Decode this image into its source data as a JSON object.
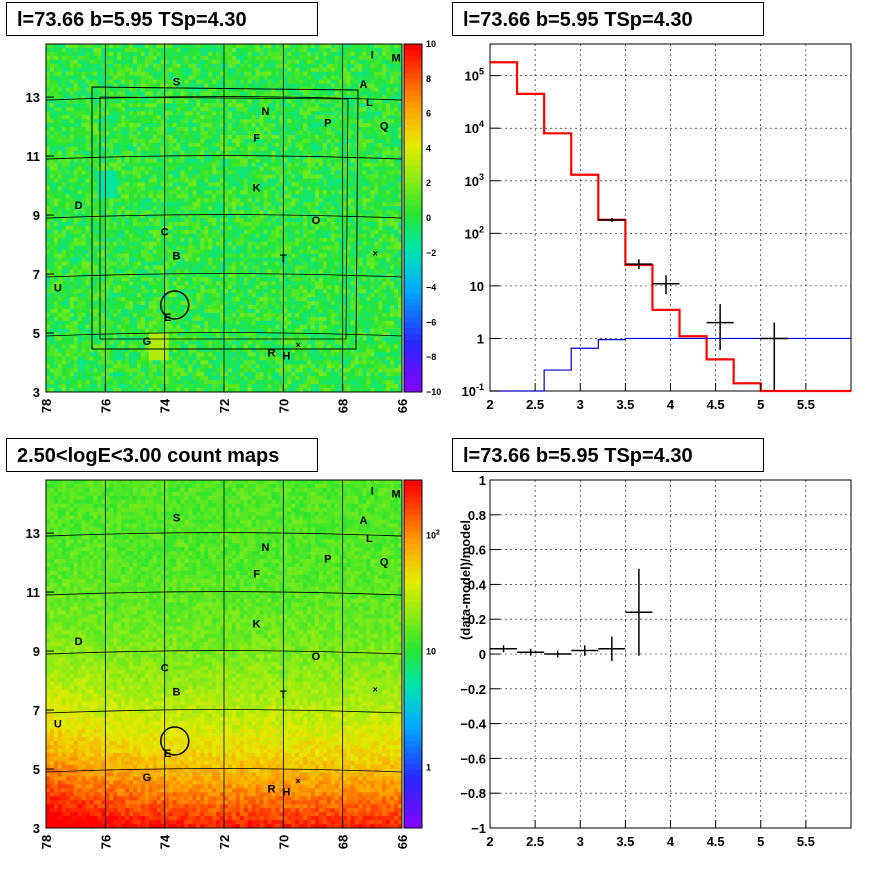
{
  "panels": {
    "map_top": {
      "title": "l=73.66 b=5.95 TSp=4.30"
    },
    "spectrum": {
      "title": "l=73.66 b=5.95 TSp=4.30"
    },
    "map_bottom": {
      "title": "2.50<logE<3.00 count maps"
    },
    "residual": {
      "title": "l=73.66 b=5.95 TSp=4.30"
    }
  },
  "colors": {
    "model": "#ff0000",
    "background": "#0000cc",
    "data": "#000000"
  },
  "chart_data": [
    {
      "type": "heatmap",
      "name": "residual significance map",
      "x_ticks": [
        "78",
        "76",
        "74",
        "72",
        "70",
        "68",
        "66"
      ],
      "y_ticks": [
        "3",
        "5",
        "7",
        "9",
        "11",
        "13"
      ],
      "xlim": [
        78,
        66
      ],
      "ylim": [
        3,
        14.8
      ],
      "colorbar_ticks": [
        "10",
        "8",
        "6",
        "4",
        "2",
        "0",
        "−2",
        "−4",
        "−6",
        "−8",
        "−10"
      ],
      "colorbar_range": [
        -10,
        10
      ],
      "sources": [
        {
          "label": "I",
          "l": 67.0,
          "b": 14.3
        },
        {
          "label": "M",
          "l": 66.2,
          "b": 14.2
        },
        {
          "label": "S",
          "l": 73.6,
          "b": 13.4
        },
        {
          "label": "A",
          "l": 67.3,
          "b": 13.3
        },
        {
          "label": "L",
          "l": 67.1,
          "b": 12.7
        },
        {
          "label": "N",
          "l": 70.6,
          "b": 12.4
        },
        {
          "label": "P",
          "l": 68.5,
          "b": 12.0
        },
        {
          "label": "Q",
          "l": 66.6,
          "b": 11.9
        },
        {
          "label": "F",
          "l": 70.9,
          "b": 11.5
        },
        {
          "label": "K",
          "l": 70.9,
          "b": 9.8
        },
        {
          "label": "D",
          "l": 76.9,
          "b": 9.2
        },
        {
          "label": "O",
          "l": 68.9,
          "b": 8.7
        },
        {
          "label": "C",
          "l": 74.0,
          "b": 8.3
        },
        {
          "label": "B",
          "l": 73.6,
          "b": 7.5
        },
        {
          "label": "T",
          "l": 70.0,
          "b": 7.4
        },
        {
          "label": "U",
          "l": 77.6,
          "b": 6.4
        },
        {
          "label": "E",
          "l": 73.9,
          "b": 5.4
        },
        {
          "label": "G",
          "l": 74.6,
          "b": 4.6
        },
        {
          "label": "R",
          "l": 70.4,
          "b": 4.2
        },
        {
          "label": "H",
          "l": 69.9,
          "b": 4.1
        }
      ],
      "crosses": [
        {
          "l": 66.9,
          "b": 7.7
        },
        {
          "l": 69.5,
          "b": 4.6
        }
      ],
      "ts_circle": {
        "l": 73.66,
        "b": 5.95
      }
    },
    {
      "type": "line",
      "name": "spectrum",
      "xlim": [
        2,
        6
      ],
      "ylim": [
        0.1,
        400000
      ],
      "y_log": true,
      "x_ticks": [
        "2",
        "2.5",
        "3",
        "3.5",
        "4",
        "4.5",
        "5",
        "5.5"
      ],
      "y_ticks": [
        "10^-1",
        "1",
        "10",
        "10^2",
        "10^3",
        "10^4",
        "10^5"
      ],
      "grid": true,
      "bin_edges": [
        2.0,
        2.3,
        2.6,
        2.9,
        3.2,
        3.5,
        3.8,
        4.1,
        4.4,
        4.7,
        5.0,
        5.3,
        5.6,
        6.0
      ],
      "series": [
        {
          "role": "model",
          "values": [
            180000,
            45000,
            8000,
            1300,
            180,
            25,
            3.5,
            1.1,
            0.4,
            0.14,
            0.1,
            0.1,
            0.1
          ]
        },
        {
          "role": "background",
          "values": [
            0.05,
            0.05,
            0.25,
            0.65,
            0.95,
            1,
            1,
            1,
            1,
            1,
            1,
            1,
            1
          ]
        }
      ],
      "data_points": [
        {
          "x": 3.35,
          "xerr": 0.15,
          "y": 180,
          "ylo": 165,
          "yhi": 195
        },
        {
          "x": 3.65,
          "xerr": 0.15,
          "y": 26,
          "ylo": 21,
          "yhi": 32
        },
        {
          "x": 3.95,
          "xerr": 0.15,
          "y": 11,
          "ylo": 7,
          "yhi": 16
        },
        {
          "x": 4.55,
          "xerr": 0.15,
          "y": 2,
          "ylo": 0.6,
          "yhi": 4.5
        },
        {
          "x": 5.15,
          "xerr": 0.15,
          "y": 1,
          "ylo": 0.1,
          "yhi": 2
        }
      ]
    },
    {
      "type": "heatmap",
      "name": "count map",
      "x_ticks": [
        "78",
        "76",
        "74",
        "72",
        "70",
        "68",
        "66"
      ],
      "y_ticks": [
        "3",
        "5",
        "7",
        "9",
        "11",
        "13"
      ],
      "xlim": [
        78,
        66
      ],
      "ylim": [
        3,
        14.8
      ],
      "colorbar_ticks": [
        "10^2",
        "10",
        "1"
      ],
      "colorbar_log_range": [
        0.3,
        300
      ]
    },
    {
      "type": "scatter",
      "name": "residual",
      "ylabel": "(data-model)/model",
      "xlim": [
        2,
        6
      ],
      "ylim": [
        -1,
        1
      ],
      "x_ticks": [
        "2",
        "2.5",
        "3",
        "3.5",
        "4",
        "4.5",
        "5",
        "5.5"
      ],
      "y_ticks": [
        "1",
        "0.8",
        "0.6",
        "0.4",
        "0.2",
        "0",
        "−0.2",
        "−0.4",
        "−0.6",
        "−0.8",
        "−1"
      ],
      "grid": true,
      "points": [
        {
          "x": 2.15,
          "xerr": 0.15,
          "y": 0.03,
          "yerr": 0.02
        },
        {
          "x": 2.45,
          "xerr": 0.15,
          "y": 0.01,
          "yerr": 0.02
        },
        {
          "x": 2.75,
          "xerr": 0.15,
          "y": 0.0,
          "yerr": 0.02
        },
        {
          "x": 3.05,
          "xerr": 0.15,
          "y": 0.02,
          "yerr": 0.03
        },
        {
          "x": 3.35,
          "xerr": 0.15,
          "y": 0.03,
          "yerr": 0.07
        },
        {
          "x": 3.65,
          "xerr": 0.15,
          "y": 0.24,
          "yerr": 0.25
        }
      ]
    }
  ]
}
